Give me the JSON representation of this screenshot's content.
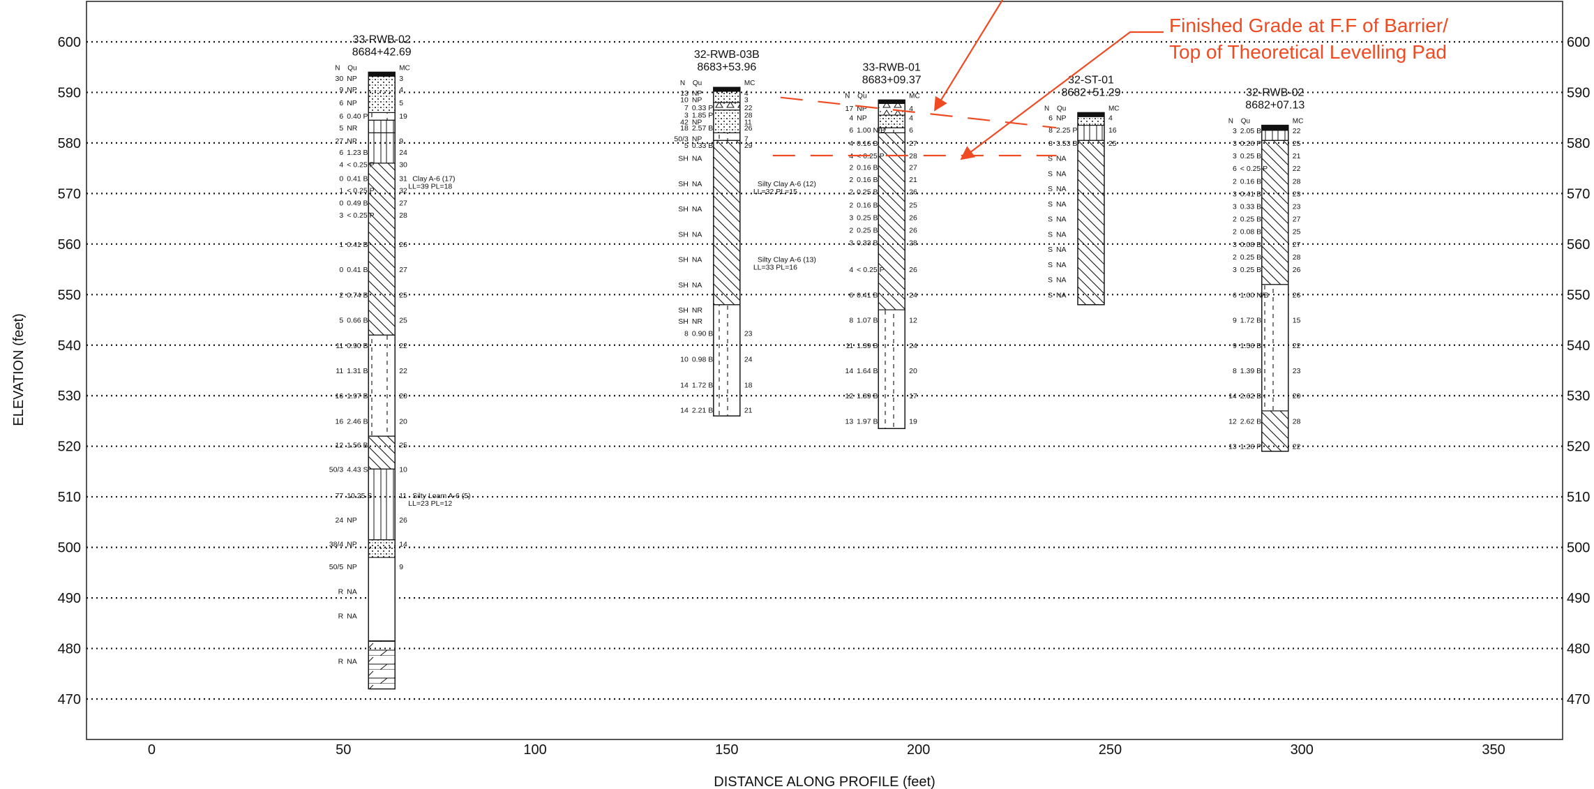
{
  "axes": {
    "x_label": "DISTANCE ALONG PROFILE (feet)",
    "y_label": "ELEVATION (feet)",
    "x_ticks": [
      0,
      50,
      100,
      150,
      200,
      250,
      300,
      350
    ],
    "y_ticks": [
      470,
      480,
      490,
      500,
      510,
      520,
      530,
      540,
      550,
      560,
      570,
      580,
      590,
      600
    ],
    "x_range": [
      -17,
      368
    ],
    "y_range": [
      462,
      608
    ]
  },
  "colors": {
    "annotation": "#f04a23",
    "ink": "#111111"
  },
  "annotations": {
    "finished_grade_line1": "Finished Grade at F.F of Barrier/",
    "finished_grade_line2": "Top of Theoretical Levelling Pad",
    "upper_line_x": [
      164,
      236
    ],
    "upper_line_y": [
      589.0,
      583.0
    ],
    "lower_line_y": 577.5,
    "lower_line_x": [
      162,
      236
    ]
  },
  "boreholes": [
    {
      "id": "33-RWB-02",
      "station": "8684+42.69",
      "x": 60,
      "top": 594,
      "bottom": 472,
      "col_n": "N",
      "col_qu": "Qu",
      "col_mc": "MC",
      "strata": [
        {
          "from": 594,
          "to": 593.2,
          "pattern": "fill"
        },
        {
          "from": 593.2,
          "to": 586,
          "pattern": "dots"
        },
        {
          "from": 586,
          "to": 584.5,
          "pattern": "dash"
        },
        {
          "from": 584.5,
          "to": 582,
          "pattern": "brick"
        },
        {
          "from": 582,
          "to": 576,
          "pattern": "brick"
        },
        {
          "from": 576,
          "to": 542,
          "pattern": "hatch"
        },
        {
          "from": 542,
          "to": 522,
          "pattern": "dash"
        },
        {
          "from": 522,
          "to": 515.5,
          "pattern": "hatch"
        },
        {
          "from": 515.5,
          "to": 501.5,
          "pattern": "brick"
        },
        {
          "from": 501.5,
          "to": 498,
          "pattern": "dots"
        },
        {
          "from": 498,
          "to": 481.5,
          "pattern": "plain"
        },
        {
          "from": 481.5,
          "to": 472,
          "pattern": "rock"
        }
      ],
      "samples": [
        {
          "elev": 592.8,
          "n": "30",
          "qu": "NP",
          "mc": "3"
        },
        {
          "elev": 590.6,
          "n": "9",
          "qu": "NP",
          "mc": "4"
        },
        {
          "elev": 588.0,
          "n": "6",
          "qu": "NP",
          "mc": "5"
        },
        {
          "elev": 585.4,
          "n": "6",
          "qu": "0.40 P",
          "mc": "19"
        },
        {
          "elev": 583.0,
          "n": "5",
          "qu": "NR",
          "mc": ""
        },
        {
          "elev": 580.5,
          "n": "27",
          "qu": "NP",
          "mc": "9"
        },
        {
          "elev": 578.2,
          "n": "6",
          "qu": "1.23 B",
          "mc": "24"
        },
        {
          "elev": 575.8,
          "n": "4",
          "qu": "< 0.25 P",
          "mc": "30"
        },
        {
          "elev": 573.0,
          "n": "0",
          "qu": "0.41 B",
          "mc": "31"
        },
        {
          "elev": 570.7,
          "n": "1",
          "qu": "< 0.25 P",
          "mc": "32"
        },
        {
          "elev": 568.2,
          "n": "0",
          "qu": "0.49 B",
          "mc": "27"
        },
        {
          "elev": 565.8,
          "n": "3",
          "qu": "< 0.25 P",
          "mc": "28"
        },
        {
          "elev": 560.0,
          "n": "1",
          "qu": "0.41 B",
          "mc": "26"
        },
        {
          "elev": 555.0,
          "n": "0",
          "qu": "0.41 B",
          "mc": "27"
        },
        {
          "elev": 550.0,
          "n": "2",
          "qu": "0.74 B",
          "mc": "25"
        },
        {
          "elev": 545.0,
          "n": "5",
          "qu": "0.66 B",
          "mc": "25"
        },
        {
          "elev": 540.0,
          "n": "11",
          "qu": "0.90 B",
          "mc": "22"
        },
        {
          "elev": 535.0,
          "n": "11",
          "qu": "1.31 B",
          "mc": "22"
        },
        {
          "elev": 530.0,
          "n": "16",
          "qu": "1.97 B",
          "mc": "20"
        },
        {
          "elev": 525.0,
          "n": "16",
          "qu": "2.46 B",
          "mc": "20"
        },
        {
          "elev": 520.3,
          "n": "12",
          "qu": "1.56 B",
          "mc": "25"
        },
        {
          "elev": 515.5,
          "n": "50/3",
          "qu": "4.43 S",
          "mc": "10"
        },
        {
          "elev": 510.3,
          "n": "77",
          "qu": "10.25 S",
          "mc": "11"
        },
        {
          "elev": 505.5,
          "n": "24",
          "qu": "NP",
          "mc": "26"
        },
        {
          "elev": 500.7,
          "n": "38/4",
          "qu": "NP",
          "mc": "14"
        },
        {
          "elev": 496.2,
          "n": "50/5",
          "qu": "NP",
          "mc": "9"
        },
        {
          "elev": 491.3,
          "n": "R",
          "qu": "NA",
          "mc": ""
        },
        {
          "elev": 486.5,
          "n": "R",
          "qu": "NA",
          "mc": ""
        },
        {
          "elev": 477.5,
          "n": "R",
          "qu": "NA",
          "mc": ""
        }
      ],
      "notes": [
        {
          "elev": 573.0,
          "l1": "Clay A-6 (17)",
          "l2": "LL=39 PL=18"
        },
        {
          "elev": 510.3,
          "l1": "Silty Loam A-6 (5)",
          "l2": "LL=23 PL=12"
        }
      ]
    },
    {
      "id": "32-RWB-03B",
      "station": "8683+53.96",
      "x": 150,
      "top": 591,
      "bottom": 526,
      "col_n": "N",
      "col_qu": "Qu",
      "col_mc": "MC",
      "strata": [
        {
          "from": 591,
          "to": 590.2,
          "pattern": "fill"
        },
        {
          "from": 590.2,
          "to": 588,
          "pattern": "dots"
        },
        {
          "from": 588,
          "to": 586.5,
          "pattern": "tri"
        },
        {
          "from": 586.5,
          "to": 582,
          "pattern": "dots"
        },
        {
          "from": 582,
          "to": 580.5,
          "pattern": "dash"
        },
        {
          "from": 580.5,
          "to": 548,
          "pattern": "hatch"
        },
        {
          "from": 548,
          "to": 526,
          "pattern": "dash"
        }
      ],
      "samples": [
        {
          "elev": 589.9,
          "n": "13",
          "qu": "NP",
          "mc": "4"
        },
        {
          "elev": 588.6,
          "n": "10",
          "qu": "NP",
          "mc": "3"
        },
        {
          "elev": 587.0,
          "n": "7",
          "qu": "0.33 P",
          "mc": "22"
        },
        {
          "elev": 585.6,
          "n": "3",
          "qu": "1.85 P",
          "mc": "28"
        },
        {
          "elev": 584.2,
          "n": "42",
          "qu": "NP",
          "mc": "11"
        },
        {
          "elev": 583.0,
          "n": "18",
          "qu": "2.57 B",
          "mc": "26"
        },
        {
          "elev": 580.9,
          "n": "50/3",
          "qu": "NP",
          "mc": "7"
        },
        {
          "elev": 579.6,
          "n": "5",
          "qu": "0.33 B",
          "mc": "29"
        },
        {
          "elev": 577.0,
          "n": "SH",
          "qu": "NA",
          "mc": ""
        },
        {
          "elev": 572.0,
          "n": "SH",
          "qu": "NA",
          "mc": ""
        },
        {
          "elev": 567.0,
          "n": "SH",
          "qu": "NA",
          "mc": ""
        },
        {
          "elev": 562.0,
          "n": "SH",
          "qu": "NA",
          "mc": ""
        },
        {
          "elev": 557.0,
          "n": "SH",
          "qu": "NA",
          "mc": ""
        },
        {
          "elev": 552.0,
          "n": "SH",
          "qu": "NA",
          "mc": ""
        },
        {
          "elev": 547.0,
          "n": "SH",
          "qu": "NR",
          "mc": ""
        },
        {
          "elev": 544.8,
          "n": "SH",
          "qu": "NR",
          "mc": ""
        },
        {
          "elev": 542.4,
          "n": "8",
          "qu": "0.90 B",
          "mc": "23"
        },
        {
          "elev": 537.3,
          "n": "10",
          "qu": "0.98 B",
          "mc": "24"
        },
        {
          "elev": 532.2,
          "n": "14",
          "qu": "1.72 B",
          "mc": "18"
        },
        {
          "elev": 527.2,
          "n": "14",
          "qu": "2.21 B",
          "mc": "21"
        }
      ],
      "notes": [
        {
          "elev": 572.0,
          "l1": "Silty Clay A-6 (12)",
          "l2": "LL=32 PL=15"
        },
        {
          "elev": 557.0,
          "l1": "Silty Clay A-6 (13)",
          "l2": "LL=33 PL=16"
        }
      ]
    },
    {
      "id": "33-RWB-01",
      "station": "8683+09.37",
      "x": 193,
      "top": 588.5,
      "bottom": 523.5,
      "col_n": "N",
      "col_qu": "Qu",
      "col_mc": "MC",
      "strata": [
        {
          "from": 588.5,
          "to": 587.8,
          "pattern": "fill"
        },
        {
          "from": 587.8,
          "to": 585.5,
          "pattern": "tri"
        },
        {
          "from": 585.5,
          "to": 583,
          "pattern": "dots"
        },
        {
          "from": 583,
          "to": 582,
          "pattern": "dash"
        },
        {
          "from": 582,
          "to": 547,
          "pattern": "hatch"
        },
        {
          "from": 547,
          "to": 523.5,
          "pattern": "dash"
        }
      ],
      "samples": [
        {
          "elev": 586.9,
          "n": "17",
          "qu": "NP",
          "mc": "4"
        },
        {
          "elev": 585.0,
          "n": "4",
          "qu": "NP",
          "mc": "4"
        },
        {
          "elev": 582.6,
          "n": "6",
          "qu": "1.00 N/B",
          "mc": "6"
        },
        {
          "elev": 580.0,
          "n": "4",
          "qu": "0.16 B",
          "mc": "27"
        },
        {
          "elev": 577.5,
          "n": "4",
          "qu": "< 0.25 P",
          "mc": "28"
        },
        {
          "elev": 575.2,
          "n": "2",
          "qu": "0.16 B",
          "mc": "27"
        },
        {
          "elev": 572.8,
          "n": "2",
          "qu": "0.16 B",
          "mc": "21"
        },
        {
          "elev": 570.4,
          "n": "2",
          "qu": "0.25 B",
          "mc": "26"
        },
        {
          "elev": 567.8,
          "n": "2",
          "qu": "0.16 B",
          "mc": "25"
        },
        {
          "elev": 565.3,
          "n": "3",
          "qu": "0.25 B",
          "mc": "26"
        },
        {
          "elev": 562.8,
          "n": "2",
          "qu": "0.25 B",
          "mc": "26"
        },
        {
          "elev": 560.3,
          "n": "3",
          "qu": "0.33 B",
          "mc": "28"
        },
        {
          "elev": 555.0,
          "n": "4",
          "qu": "< 0.25 P",
          "mc": "26"
        },
        {
          "elev": 550.0,
          "n": "6",
          "qu": "0.41 B",
          "mc": "24"
        },
        {
          "elev": 545.0,
          "n": "8",
          "qu": "1.07 B",
          "mc": "12"
        },
        {
          "elev": 540.0,
          "n": "11",
          "qu": "1.39 B",
          "mc": "24"
        },
        {
          "elev": 535.0,
          "n": "14",
          "qu": "1.64 B",
          "mc": "20"
        },
        {
          "elev": 530.0,
          "n": "12",
          "qu": "1.89 B",
          "mc": "17"
        },
        {
          "elev": 525.0,
          "n": "13",
          "qu": "1.97 B",
          "mc": "19"
        }
      ],
      "notes": []
    },
    {
      "id": "32-ST-01",
      "station": "8682+51.29",
      "x": 245,
      "top": 586,
      "bottom": 548,
      "col_n": "N",
      "col_qu": "Qu",
      "col_mc": "MC",
      "strata": [
        {
          "from": 586,
          "to": 585.2,
          "pattern": "fill"
        },
        {
          "from": 585.2,
          "to": 583.5,
          "pattern": "dots"
        },
        {
          "from": 583.5,
          "to": 580.5,
          "pattern": "brick"
        },
        {
          "from": 580.5,
          "to": 548,
          "pattern": "hatch"
        }
      ],
      "samples": [
        {
          "elev": 585.0,
          "n": "6",
          "qu": "NP",
          "mc": "4"
        },
        {
          "elev": 582.6,
          "n": "8",
          "qu": "2.25 P",
          "mc": "16"
        },
        {
          "elev": 580.0,
          "n": "8",
          "qu": "3.53 B",
          "mc": "25"
        },
        {
          "elev": 577.0,
          "n": "S",
          "qu": "NA",
          "mc": ""
        },
        {
          "elev": 574.0,
          "n": "S",
          "qu": "NA",
          "mc": ""
        },
        {
          "elev": 571.0,
          "n": "S",
          "qu": "NA",
          "mc": ""
        },
        {
          "elev": 568.0,
          "n": "S",
          "qu": "NA",
          "mc": ""
        },
        {
          "elev": 565.0,
          "n": "S",
          "qu": "NA",
          "mc": ""
        },
        {
          "elev": 562.0,
          "n": "S",
          "qu": "NA",
          "mc": ""
        },
        {
          "elev": 559.0,
          "n": "S",
          "qu": "NA",
          "mc": ""
        },
        {
          "elev": 556.0,
          "n": "S",
          "qu": "NA",
          "mc": ""
        },
        {
          "elev": 553.0,
          "n": "S",
          "qu": "NA",
          "mc": ""
        },
        {
          "elev": 550.0,
          "n": "S",
          "qu": "NA",
          "mc": ""
        }
      ],
      "notes": []
    },
    {
      "id": "32-RWB-02",
      "station": "8682+07.13",
      "x": 293,
      "top": 583.5,
      "bottom": 519,
      "col_n": "N",
      "col_qu": "Qu",
      "col_mc": "MC",
      "strata": [
        {
          "from": 583.5,
          "to": 582.5,
          "pattern": "fill"
        },
        {
          "from": 582.5,
          "to": 580.5,
          "pattern": "brick"
        },
        {
          "from": 580.5,
          "to": 552,
          "pattern": "hatch"
        },
        {
          "from": 552,
          "to": 527,
          "pattern": "dash"
        },
        {
          "from": 527,
          "to": 519,
          "pattern": "hatch"
        }
      ],
      "samples": [
        {
          "elev": 582.5,
          "n": "3",
          "qu": "2.05 B",
          "mc": "22"
        },
        {
          "elev": 580.0,
          "n": "3",
          "qu": "0.26 P",
          "mc": "25"
        },
        {
          "elev": 577.5,
          "n": "3",
          "qu": "0.25 B",
          "mc": "21"
        },
        {
          "elev": 575.0,
          "n": "6",
          "qu": "< 0.25 P",
          "mc": "22"
        },
        {
          "elev": 572.5,
          "n": "2",
          "qu": "0.16 B",
          "mc": "28"
        },
        {
          "elev": 570.0,
          "n": "3",
          "qu": "0.41 B",
          "mc": "23"
        },
        {
          "elev": 567.5,
          "n": "3",
          "qu": "0.33 B",
          "mc": "23"
        },
        {
          "elev": 565.0,
          "n": "2",
          "qu": "0.25 B",
          "mc": "27"
        },
        {
          "elev": 562.5,
          "n": "2",
          "qu": "0.08 B",
          "mc": "25"
        },
        {
          "elev": 560.0,
          "n": "3",
          "qu": "0.08 B",
          "mc": "27"
        },
        {
          "elev": 557.5,
          "n": "2",
          "qu": "0.25 B",
          "mc": "28"
        },
        {
          "elev": 555.0,
          "n": "3",
          "qu": "0.25 B",
          "mc": "26"
        },
        {
          "elev": 550.0,
          "n": "6",
          "qu": "1.00 N/B",
          "mc": "26"
        },
        {
          "elev": 545.0,
          "n": "9",
          "qu": "1.72 B",
          "mc": "15"
        },
        {
          "elev": 540.0,
          "n": "9",
          "qu": "1.56 B",
          "mc": "22"
        },
        {
          "elev": 535.0,
          "n": "8",
          "qu": "1.39 B",
          "mc": "23"
        },
        {
          "elev": 530.0,
          "n": "14",
          "qu": "2.62 B",
          "mc": "20"
        },
        {
          "elev": 525.0,
          "n": "12",
          "qu": "2.62 B",
          "mc": "28"
        },
        {
          "elev": 520.0,
          "n": "13",
          "qu": "1.26 P",
          "mc": "22"
        }
      ],
      "notes": []
    }
  ]
}
